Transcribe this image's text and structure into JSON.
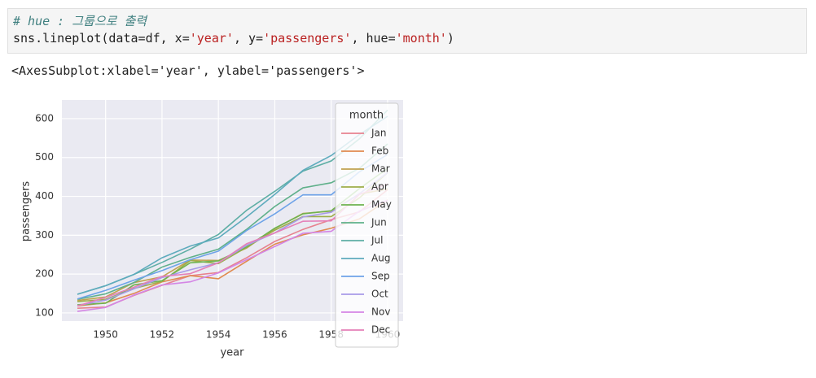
{
  "code": {
    "comment": "# hue : 그룹으로 출력",
    "tokens": [
      "sns.lineplot(data=",
      "df",
      ", x=",
      "'year'",
      ", y=",
      "'passengers'",
      ", hue=",
      "'month'",
      ")"
    ]
  },
  "output": "<AxesSubplot:xlabel='year', ylabel='passengers'>",
  "chart_data": {
    "type": "line",
    "x_label": "year",
    "y_label": "passengers",
    "x": [
      1949,
      1950,
      1951,
      1952,
      1953,
      1954,
      1955,
      1956,
      1957,
      1958,
      1959,
      1960
    ],
    "xlim": [
      1948.45,
      1960.55
    ],
    "xticks": [
      1950,
      1952,
      1954,
      1956,
      1958,
      1960
    ],
    "ylim": [
      79,
      648
    ],
    "yticks": [
      100,
      200,
      300,
      400,
      500,
      600
    ],
    "grid": true,
    "legend_title": "month",
    "legend_position": "upper right",
    "series": [
      {
        "name": "Jan",
        "color": "#e7828f",
        "values": [
          112,
          115,
          145,
          171,
          196,
          204,
          242,
          284,
          315,
          340,
          360,
          417
        ]
      },
      {
        "name": "Feb",
        "color": "#e08a4f",
        "values": [
          118,
          126,
          150,
          180,
          196,
          188,
          233,
          277,
          301,
          318,
          342,
          391
        ]
      },
      {
        "name": "Mar",
        "color": "#c0a24f",
        "values": [
          132,
          141,
          178,
          193,
          236,
          235,
          267,
          317,
          356,
          362,
          406,
          419
        ]
      },
      {
        "name": "Apr",
        "color": "#9fae4a",
        "values": [
          129,
          135,
          163,
          181,
          235,
          227,
          269,
          313,
          348,
          348,
          396,
          461
        ]
      },
      {
        "name": "May",
        "color": "#6fb34f",
        "values": [
          121,
          125,
          172,
          183,
          229,
          234,
          270,
          318,
          355,
          363,
          420,
          472
        ]
      },
      {
        "name": "Jun",
        "color": "#5fb08a",
        "values": [
          135,
          149,
          178,
          218,
          243,
          264,
          315,
          374,
          422,
          435,
          472,
          535
        ]
      },
      {
        "name": "Jul",
        "color": "#5eaea5",
        "values": [
          148,
          170,
          199,
          230,
          264,
          302,
          364,
          413,
          465,
          491,
          548,
          622
        ]
      },
      {
        "name": "Aug",
        "color": "#5eabbd",
        "values": [
          148,
          170,
          199,
          242,
          272,
          293,
          347,
          405,
          467,
          505,
          559,
          606
        ]
      },
      {
        "name": "Sep",
        "color": "#6ea3e8",
        "values": [
          136,
          158,
          184,
          209,
          237,
          259,
          312,
          355,
          404,
          404,
          463,
          508
        ]
      },
      {
        "name": "Oct",
        "color": "#a79ae8",
        "values": [
          119,
          133,
          162,
          191,
          211,
          229,
          274,
          306,
          347,
          359,
          407,
          461
        ]
      },
      {
        "name": "Nov",
        "color": "#d486e5",
        "values": [
          104,
          114,
          146,
          172,
          180,
          203,
          237,
          271,
          305,
          310,
          362,
          390
        ]
      },
      {
        "name": "Dec",
        "color": "#e580b8",
        "values": [
          118,
          140,
          166,
          194,
          201,
          229,
          278,
          306,
          336,
          337,
          405,
          432
        ]
      }
    ]
  }
}
